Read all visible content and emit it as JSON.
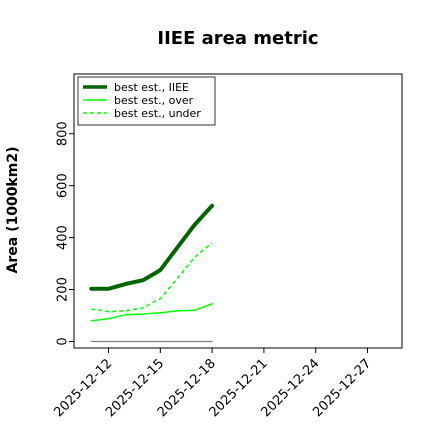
{
  "chart_data": {
    "type": "line",
    "title": "IIEE area metric",
    "xlabel": "",
    "ylabel": "Area (1000km2)",
    "xlim": [
      "2025-12-10",
      "2025-12-29"
    ],
    "ylim": [
      -25,
      1030
    ],
    "yticks": [
      0,
      200,
      400,
      600,
      800
    ],
    "xticks": [
      "2025-12-12",
      "2025-12-15",
      "2025-12-18",
      "2025-12-21",
      "2025-12-24",
      "2025-12-27"
    ],
    "x": [
      "2025-12-11",
      "2025-12-12",
      "2025-12-13",
      "2025-12-14",
      "2025-12-15",
      "2025-12-16",
      "2025-12-17",
      "2025-12-18"
    ],
    "series": [
      {
        "name": "best est., IIEE",
        "color": "#006400",
        "style": "solid",
        "width": 4,
        "values": [
          203,
          203,
          222,
          236,
          275,
          363,
          450,
          523
        ]
      },
      {
        "name": "best est., over",
        "color": "#00ff00",
        "style": "solid",
        "width": 1.5,
        "values": [
          80,
          88,
          103,
          106,
          111,
          118,
          120,
          145
        ]
      },
      {
        "name": "best est., under",
        "color": "#00ff00",
        "style": "dashed",
        "width": 1.5,
        "values": [
          125,
          115,
          118,
          130,
          165,
          245,
          325,
          380
        ]
      },
      {
        "name": "",
        "color": "#808080",
        "style": "solid",
        "width": 1.2,
        "values": [
          0,
          0,
          0,
          0,
          0,
          0,
          0,
          0
        ]
      }
    ],
    "legend": "top-left",
    "grid": false
  }
}
